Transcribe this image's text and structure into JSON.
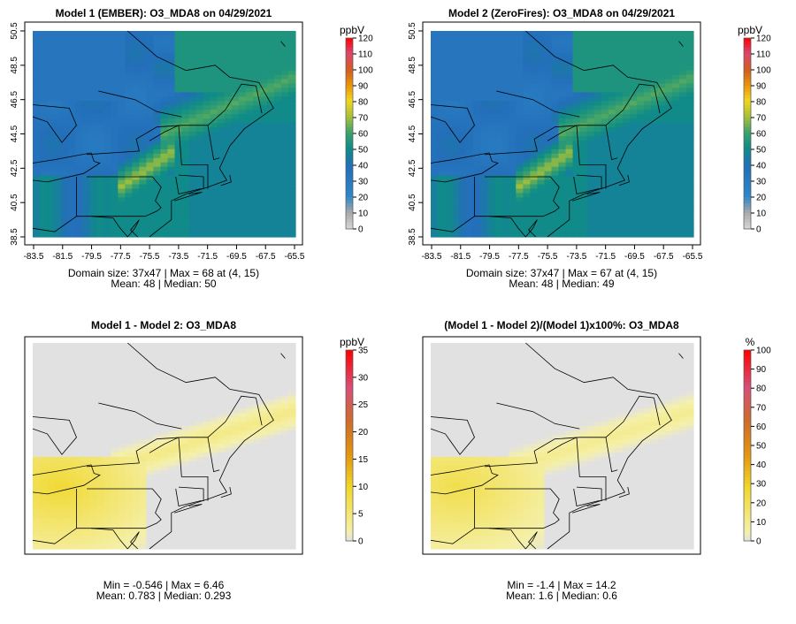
{
  "figure": {
    "panels_count": 4
  },
  "chart_data": [
    {
      "type": "heatmap",
      "title": "Model 1 (EMBER): O3_MDA8 on 04/29/2021",
      "colorbar": {
        "unit": "ppbV",
        "ticks": [
          "120",
          "110",
          "100",
          "90",
          "80",
          "70",
          "60",
          "50",
          "40",
          "30",
          "20",
          "10",
          "0"
        ],
        "range": [
          0,
          120
        ],
        "palette": "ozone"
      },
      "xticks": [
        "-83.5",
        "-81.5",
        "-79.5",
        "-77.5",
        "-75.5",
        "-73.5",
        "-71.5",
        "-69.5",
        "-67.5",
        "-65.5"
      ],
      "yticks": [
        "50.5",
        "48.5",
        "46.5",
        "44.5",
        "42.5",
        "40.5",
        "38.5"
      ],
      "xlim": [
        -83.5,
        -65.5
      ],
      "ylim": [
        38.5,
        50.5
      ],
      "field": "ozone",
      "stats_line1": "Domain size: 37x47 | Max = 68 at (4, 15)",
      "stats_line2": "Mean: 48 |  Median: 50",
      "mean": 48,
      "median": 50,
      "max": 68,
      "domain": "37x47"
    },
    {
      "type": "heatmap",
      "title": "Model 2 (ZeroFires): O3_MDA8 on 04/29/2021",
      "colorbar": {
        "unit": "ppbV",
        "ticks": [
          "120",
          "110",
          "100",
          "90",
          "80",
          "70",
          "60",
          "50",
          "40",
          "30",
          "20",
          "10",
          "0"
        ],
        "range": [
          0,
          120
        ],
        "palette": "ozone"
      },
      "xticks": [
        "-83.5",
        "-81.5",
        "-79.5",
        "-77.5",
        "-75.5",
        "-73.5",
        "-71.5",
        "-69.5",
        "-67.5",
        "-65.5"
      ],
      "yticks": [
        "50.5",
        "48.5",
        "46.5",
        "44.5",
        "42.5",
        "40.5",
        "38.5"
      ],
      "xlim": [
        -83.5,
        -65.5
      ],
      "ylim": [
        38.5,
        50.5
      ],
      "field": "ozone",
      "stats_line1": "Domain size: 37x47 | Max = 67 at (4, 15)",
      "stats_line2": "Mean: 48 |  Median: 49",
      "mean": 48,
      "median": 49,
      "max": 67,
      "domain": "37x47"
    },
    {
      "type": "heatmap",
      "title": "Model 1 - Model 2: O3_MDA8",
      "colorbar": {
        "unit": "ppbV",
        "ticks": [
          "35",
          "30",
          "25",
          "20",
          "15",
          "10",
          "5",
          "0"
        ],
        "range": [
          0,
          35
        ],
        "palette": "diff"
      },
      "xticks": [],
      "yticks": [],
      "field": "diff",
      "stats_line1": "Min = -0.546 | Max = 6.46",
      "stats_line2": "Mean: 0.783 |  Median: 0.293",
      "min": -0.546,
      "max": 6.46,
      "mean": 0.783,
      "median": 0.293
    },
    {
      "type": "heatmap",
      "title": "(Model 1 - Model 2)/(Model 1)x100%: O3_MDA8",
      "colorbar": {
        "unit": "%",
        "ticks": [
          "100",
          "90",
          "80",
          "70",
          "60",
          "50",
          "40",
          "30",
          "20",
          "10",
          "0"
        ],
        "range": [
          0,
          100
        ],
        "palette": "diff"
      },
      "xticks": [],
      "yticks": [],
      "field": "pct",
      "stats_line1": "Min = -1.4 | Max = 14.2",
      "stats_line2": "Mean: 1.6 |  Median: 0.6",
      "min": -1.4,
      "max": 14.2,
      "mean": 1.6,
      "median": 0.6
    }
  ]
}
